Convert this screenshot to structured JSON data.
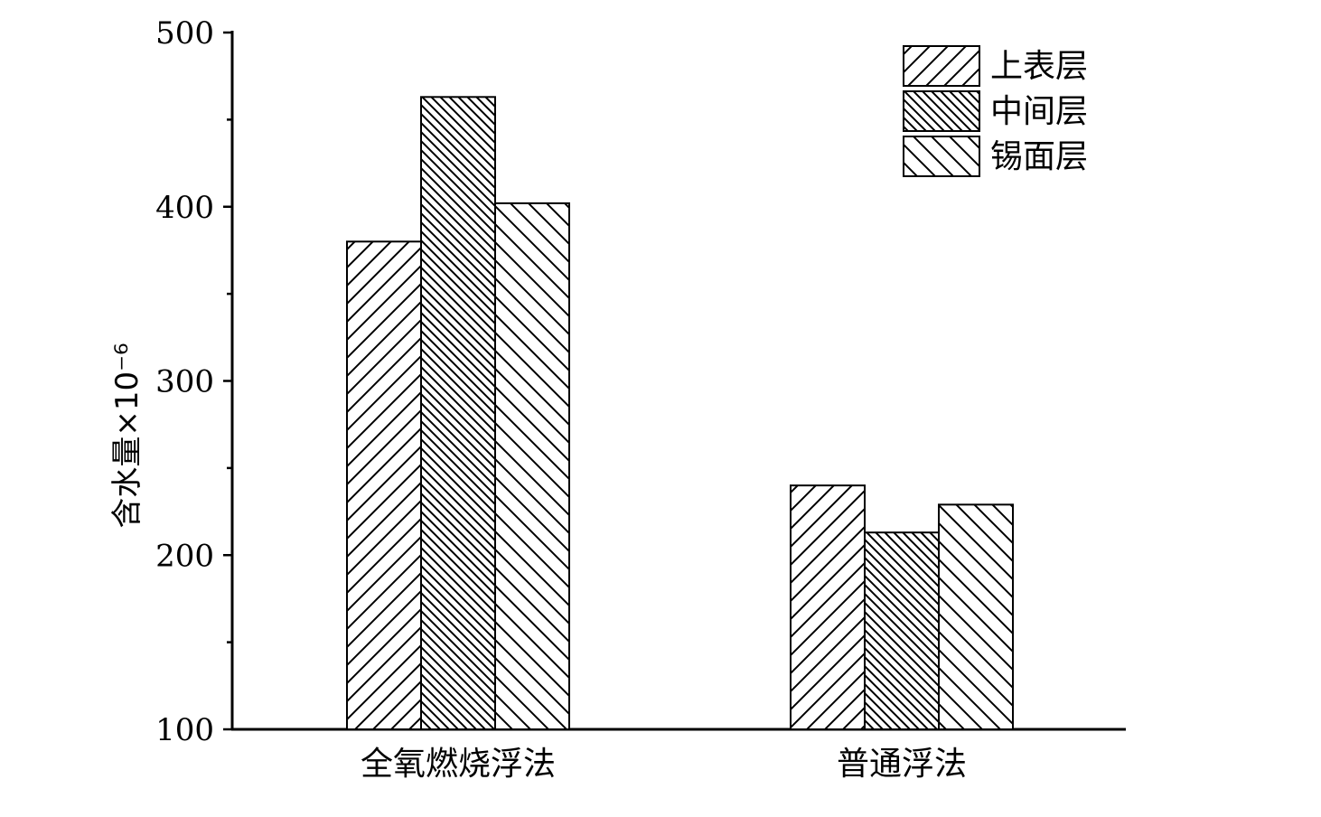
{
  "chart_data": {
    "type": "bar",
    "title": "",
    "xlabel": "",
    "ylabel": "含水量×10⁻⁶",
    "ylim": [
      100,
      500
    ],
    "yticks": [
      100,
      200,
      300,
      400,
      500
    ],
    "categories": [
      "全氧燃烧浮法",
      "普通浮法"
    ],
    "series": [
      {
        "name": "上表层",
        "pattern": "hatch-forward",
        "values": [
          380,
          240
        ]
      },
      {
        "name": "中间层",
        "pattern": "hatch-backward-dense",
        "values": [
          463,
          213
        ]
      },
      {
        "name": "锡面层",
        "pattern": "hatch-backward",
        "values": [
          402,
          229
        ]
      }
    ],
    "legend_position": "top-right",
    "grid": false,
    "colors": {
      "fill": "#ffffff",
      "stroke": "#000000"
    }
  }
}
